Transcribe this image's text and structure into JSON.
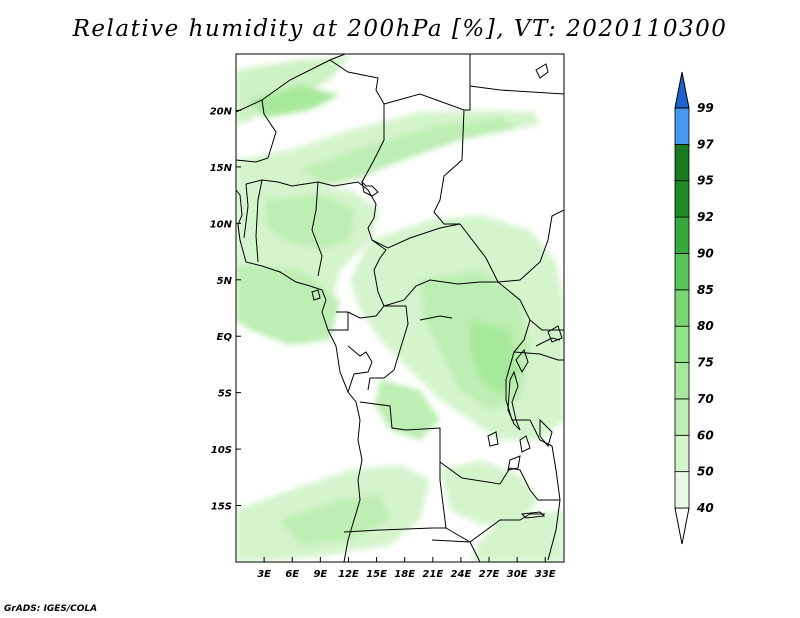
{
  "title": "Relative humidity at 200hPa [%], VT: 2020110300",
  "credit": "GrADS: IGES/COLA",
  "map": {
    "lat_ticks": [
      "20N",
      "15N",
      "10N",
      "5N",
      "EQ",
      "5S",
      "10S",
      "15S"
    ],
    "lon_ticks": [
      "3E",
      "6E",
      "9E",
      "12E",
      "15E",
      "18E",
      "21E",
      "24E",
      "27E",
      "30E",
      "33E"
    ]
  },
  "colorbar": {
    "levels": [
      "40",
      "50",
      "60",
      "70",
      "75",
      "80",
      "85",
      "90",
      "92",
      "95",
      "97",
      "99"
    ],
    "colors": [
      "#ffffff",
      "#eaf9e6",
      "#d4f4cc",
      "#bdeeb3",
      "#a7e99c",
      "#90e287",
      "#7ad673",
      "#59c45a",
      "#36a93e",
      "#1f8c27",
      "#1a7a22",
      "#4499ee",
      "#2c7fe0",
      "#1b65cc"
    ]
  },
  "chart_data": {
    "type": "heatmap",
    "title": "Relative humidity at 200hPa [%], VT: 2020110300",
    "xlabel": "",
    "ylabel": "",
    "x_ticks": [
      "3E",
      "6E",
      "9E",
      "12E",
      "15E",
      "18E",
      "21E",
      "24E",
      "27E",
      "30E",
      "33E"
    ],
    "y_ticks": [
      "20N",
      "15N",
      "10N",
      "5N",
      "EQ",
      "5S",
      "10S",
      "15S"
    ],
    "lon_range": [
      0,
      35
    ],
    "lat_range": [
      -20,
      25
    ],
    "color_levels": [
      40,
      50,
      60,
      70,
      75,
      80,
      85,
      90,
      92,
      95,
      97,
      99
    ],
    "units": "%"
  }
}
